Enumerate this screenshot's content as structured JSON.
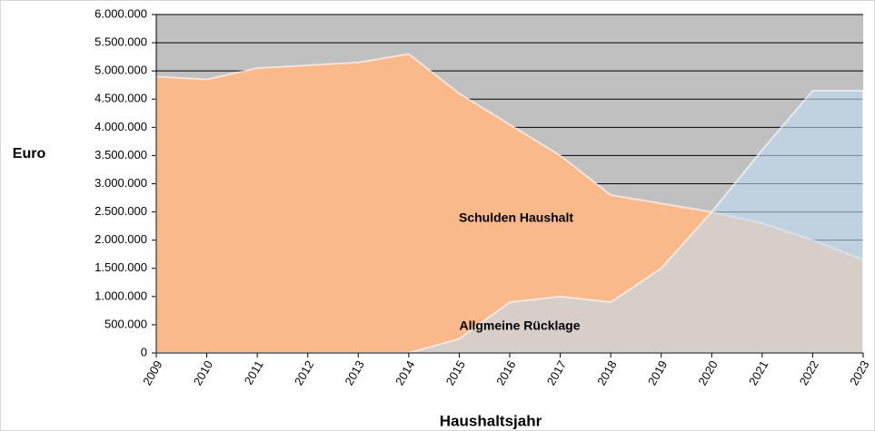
{
  "chart_data": {
    "type": "area",
    "x_label": "Haushaltsjahr",
    "y_label": "Euro",
    "x": [
      2009,
      2010,
      2011,
      2012,
      2013,
      2014,
      2015,
      2016,
      2017,
      2018,
      2019,
      2020,
      2021,
      2022,
      2023
    ],
    "xlim": [
      2009,
      2023
    ],
    "series": [
      {
        "name": "Schulden Haushalt",
        "color": "#f9b98a",
        "values": [
          4900000,
          4850000,
          5050000,
          5100000,
          5150000,
          5300000,
          4600000,
          4050000,
          3500000,
          2800000,
          2650000,
          2500000,
          2300000,
          2000000,
          1650000
        ]
      },
      {
        "name": "Allgmeine Rücklage",
        "color": "#bfdcf3",
        "values": [
          0,
          0,
          0,
          0,
          0,
          0,
          250000,
          900000,
          1000000,
          900000,
          1500000,
          2500000,
          3600000,
          4650000,
          4650000
        ]
      }
    ],
    "ylim": [
      0,
      6000000
    ],
    "yticks": [
      0,
      {
        "value": 500000,
        "label": "500.000"
      },
      {
        "value": 1000000,
        "label": "1.000.000"
      },
      {
        "value": 1500000,
        "label": "1.500.000"
      },
      {
        "value": 2000000,
        "label": "2.000.000"
      },
      {
        "value": 2500000,
        "label": "2.500.000"
      },
      {
        "value": 3000000,
        "label": "3.000.000"
      },
      {
        "value": 3500000,
        "label": "3.500.000"
      },
      {
        "value": 4000000,
        "label": "4.000.000"
      },
      {
        "value": 4500000,
        "label": "4.500.000"
      },
      {
        "value": 5000000,
        "label": "5.000.000"
      },
      {
        "value": 5500000,
        "label": "5.500.000"
      },
      {
        "value": 6000000,
        "label": "6.000.000"
      }
    ],
    "grid": true,
    "plot_background": "#c0c0c0"
  }
}
